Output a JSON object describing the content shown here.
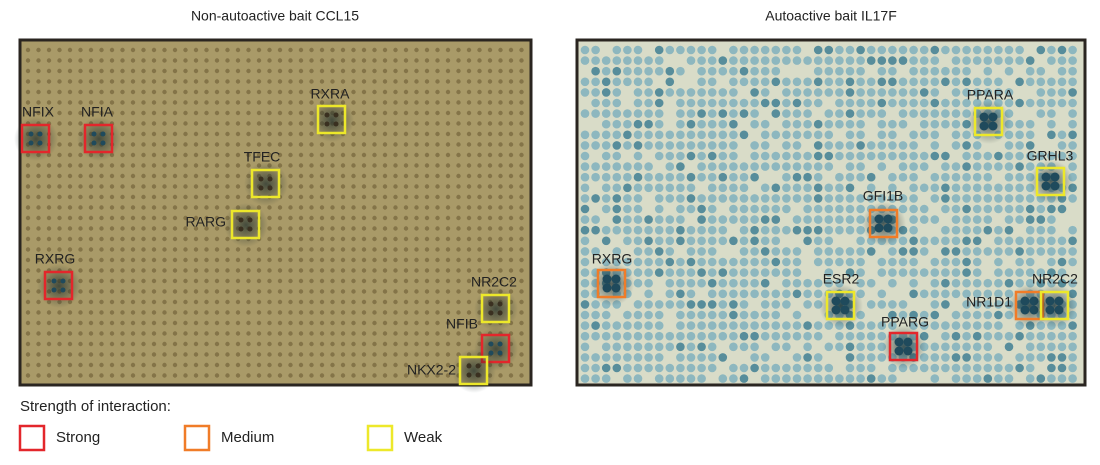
{
  "panels": [
    {
      "title": "Non-autoactive bait CCL15",
      "boxes": [
        [
          "NFIX",
          "NFIA",
          "RXRG",
          "NFIB"
        ],
        [],
        [
          "RXRA",
          "TFEC",
          "RARG",
          "NR2C2",
          "NKX2-2"
        ]
      ]
    },
    {
      "title": "Autoactive bait IL17F",
      "boxes": [
        [
          "PPARG"
        ],
        [
          "GFI1B",
          "RXRG",
          "NR1D1"
        ],
        [
          "PPARA",
          "GRHL3",
          "ESR2",
          "NR2C2"
        ]
      ]
    }
  ],
  "legend": {
    "title": "Strength of interaction:",
    "items": [
      {
        "label": "Strong",
        "color": "#e3262b"
      },
      {
        "label": "Medium",
        "color": "#f07c28"
      },
      {
        "label": "Weak",
        "color": "#ede82a"
      }
    ]
  }
}
